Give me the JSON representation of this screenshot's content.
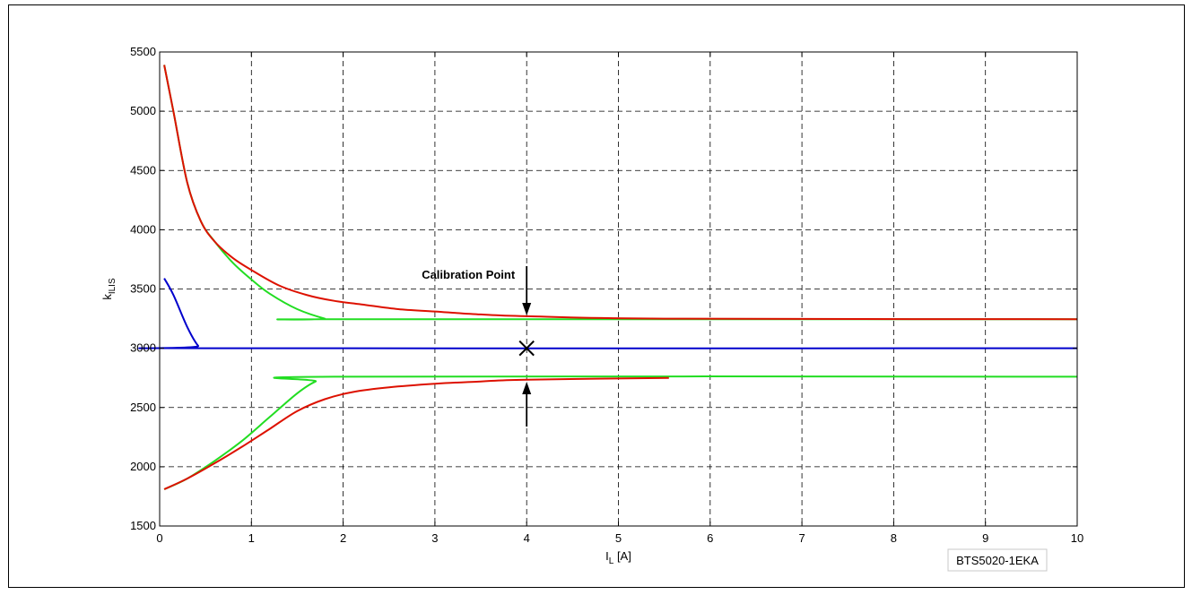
{
  "chart_data": {
    "type": "line",
    "xlabel_main": "I",
    "xlabel_sub": "L",
    "xlabel_unit": " [A]",
    "ylabel_main": "k",
    "ylabel_sub": "ILIS",
    "xlim": [
      0,
      10
    ],
    "ylim": [
      1500,
      5500
    ],
    "xticks": [
      0,
      1,
      2,
      3,
      4,
      5,
      6,
      7,
      8,
      9,
      10
    ],
    "yticks": [
      1500,
      2000,
      2500,
      3000,
      3500,
      4000,
      4500,
      5000,
      5500
    ],
    "grid": true,
    "annotation": {
      "text": "Calibration Point",
      "x": 4,
      "y": 3000
    },
    "part_label": "BTS5020-1EKA",
    "colors": {
      "red": "#dd1100",
      "green": "#22dd22",
      "blue": "#0000cc"
    },
    "series": [
      {
        "color": "red",
        "x": [
          0.05,
          0.15,
          0.3,
          0.45,
          0.6,
          0.8,
          1.0,
          1.3,
          1.6,
          1.9,
          2.2,
          2.6,
          3.0,
          3.5,
          4.0,
          5.5,
          10
        ],
        "y": [
          5390,
          5000,
          4400,
          4070,
          3900,
          3760,
          3660,
          3530,
          3450,
          3400,
          3370,
          3330,
          3310,
          3285,
          3270,
          3250,
          3245
        ]
      },
      {
        "color": "green",
        "x": [
          0.05,
          0.15,
          0.3,
          0.45,
          0.6,
          0.8,
          1.0,
          1.2,
          1.5,
          1.8,
          1.9,
          10
        ],
        "y": [
          5390,
          5000,
          4400,
          4070,
          3900,
          3720,
          3580,
          3460,
          3330,
          3250,
          3245,
          3245
        ]
      },
      {
        "color": "blue",
        "x": [
          0.05,
          0.15,
          0.3,
          0.42,
          0.5,
          10
        ],
        "y": [
          3590,
          3450,
          3180,
          3020,
          3000,
          3000
        ]
      },
      {
        "color": "green",
        "x": [
          0.05,
          0.3,
          0.6,
          0.9,
          1.2,
          1.5,
          1.7,
          1.9,
          10
        ],
        "y": [
          1810,
          1900,
          2050,
          2220,
          2420,
          2620,
          2720,
          2760,
          2760
        ]
      },
      {
        "color": "red",
        "x": [
          0.05,
          0.3,
          0.6,
          0.9,
          1.2,
          1.5,
          1.8,
          2.1,
          2.5,
          3.0,
          3.5,
          4.0,
          5.55
        ],
        "y": [
          1810,
          1900,
          2030,
          2170,
          2320,
          2470,
          2570,
          2630,
          2670,
          2700,
          2720,
          2735,
          2750
        ]
      }
    ]
  }
}
